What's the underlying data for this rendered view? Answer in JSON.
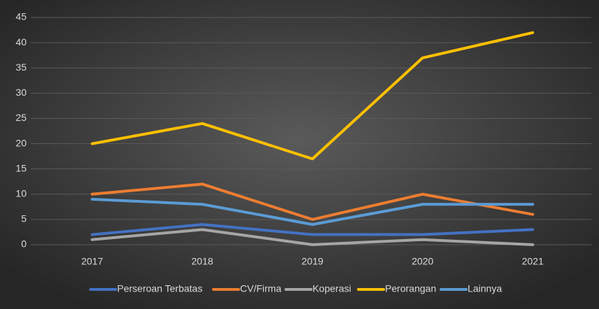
{
  "chart_data": {
    "type": "line",
    "categories": [
      "2017",
      "2018",
      "2019",
      "2020",
      "2021"
    ],
    "series": [
      {
        "name": "Perseroan Terbatas",
        "color": "#4472c4",
        "values": [
          2,
          4,
          2,
          2,
          3
        ]
      },
      {
        "name": "CV/Firma",
        "color": "#ed7d31",
        "values": [
          10,
          12,
          5,
          10,
          6
        ]
      },
      {
        "name": "Koperasi",
        "color": "#a5a5a5",
        "values": [
          1,
          3,
          0,
          1,
          0
        ]
      },
      {
        "name": "Perorangan",
        "color": "#ffc000",
        "values": [
          20,
          24,
          17,
          37,
          42
        ]
      },
      {
        "name": "Lainnya",
        "color": "#5b9bd5",
        "values": [
          9,
          8,
          4,
          8,
          8
        ]
      }
    ],
    "ylim": [
      0,
      45
    ],
    "yticks": [
      0,
      5,
      10,
      15,
      20,
      25,
      30,
      35,
      40,
      45
    ],
    "grid": true,
    "legend": "bottom"
  }
}
